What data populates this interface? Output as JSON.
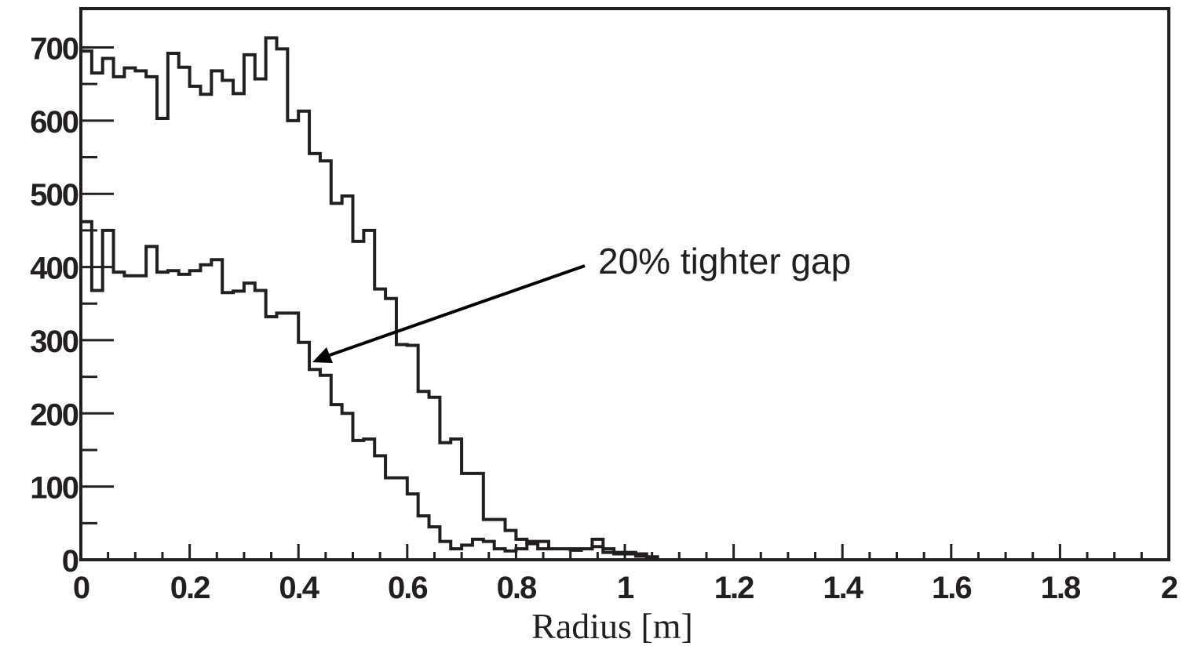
{
  "chart_data": {
    "type": "line",
    "title": "",
    "xlabel": "Radius [m]",
    "ylabel": "",
    "xlim": [
      0,
      2
    ],
    "ylim": [
      0,
      700
    ],
    "x_ticks": [
      0,
      0.2,
      0.4,
      0.6,
      0.8,
      1,
      1.2,
      1.4,
      1.6,
      1.8,
      2
    ],
    "x_tick_labels": [
      "0",
      "0.2",
      "0.4",
      "0.6",
      "0.8",
      "1",
      "1.2",
      "1.4",
      "1.6",
      "1.8",
      "2"
    ],
    "y_ticks": [
      0,
      100,
      200,
      300,
      400,
      500,
      600,
      700
    ],
    "y_tick_labels": [
      "0",
      "100",
      "200",
      "300",
      "400",
      "500",
      "600",
      "700"
    ],
    "grid": false,
    "legend": "none",
    "bin_width": 0.02,
    "series": [
      {
        "values": [
          695,
          665,
          685,
          660,
          672,
          668,
          660,
          603,
          692,
          673,
          647,
          636,
          668,
          655,
          637,
          690,
          657,
          713,
          698,
          600,
          613,
          555,
          545,
          487,
          497,
          435,
          450,
          370,
          357,
          294,
          293,
          230,
          222,
          160,
          165,
          118,
          118,
          55,
          55,
          40,
          28,
          22,
          15,
          15,
          15,
          15,
          15,
          18,
          10,
          8,
          8,
          8,
          4
        ]
      },
      {
        "values": [
          462,
          368,
          450,
          393,
          388,
          388,
          428,
          393,
          395,
          390,
          395,
          403,
          410,
          365,
          367,
          378,
          368,
          332,
          337,
          337,
          297,
          260,
          252,
          212,
          200,
          163,
          165,
          142,
          112,
          112,
          90,
          60,
          45,
          25,
          15,
          20,
          28,
          25,
          15,
          12,
          15,
          25,
          25,
          15,
          15,
          13,
          15,
          28,
          15,
          10,
          10,
          5,
          3
        ]
      }
    ],
    "annotations": [
      {
        "text": "20% tighter gap",
        "arrow_to": [
          0.42,
          270
        ]
      }
    ]
  }
}
